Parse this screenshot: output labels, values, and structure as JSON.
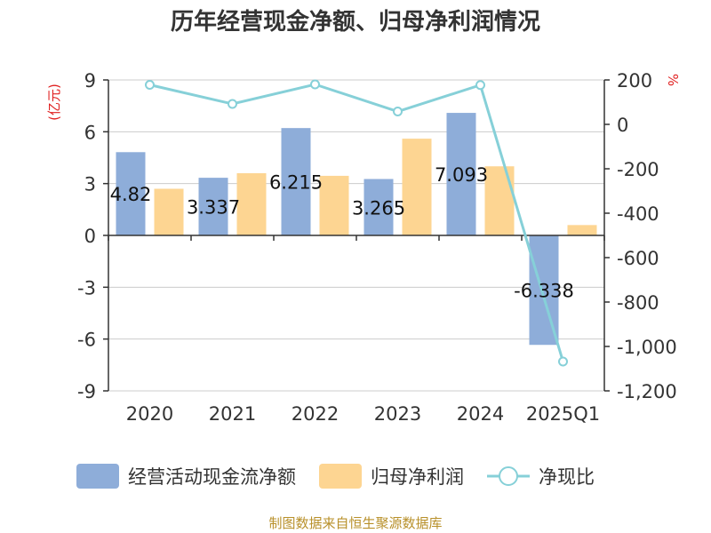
{
  "chart_data": {
    "type": "bar",
    "title": "历年经营现金净额、归母净利润情况",
    "left_unit": "(亿元)",
    "right_unit": "%",
    "categories": [
      "2020",
      "2021",
      "2022",
      "2023",
      "2024",
      "2025Q1"
    ],
    "ylim_left": [
      -9,
      9
    ],
    "left_ticks": [
      "9",
      "6",
      "3",
      "0",
      "-3",
      "-6",
      "-9"
    ],
    "ylim_right": [
      -1200,
      200
    ],
    "right_ticks": [
      "200",
      "0",
      "-200",
      "-400",
      "-600",
      "-800",
      "-1,000",
      "-1,200"
    ],
    "grid": true,
    "legend_position": "bottom",
    "series": [
      {
        "name": "经营活动现金流净额",
        "kind": "bar",
        "axis": "left",
        "color": "#8eadd9",
        "values": [
          4.82,
          3.337,
          6.215,
          3.265,
          7.093,
          -6.338
        ],
        "labels": [
          "4.82",
          "3.337",
          "6.215",
          "3.265",
          "7.093",
          "-6.338"
        ]
      },
      {
        "name": "归母净利润",
        "kind": "bar",
        "axis": "left",
        "color": "#fdd592",
        "values": [
          2.7,
          3.6,
          3.45,
          5.6,
          4.0,
          0.6
        ]
      },
      {
        "name": "净现比",
        "kind": "line",
        "axis": "right",
        "color": "#86d0d8",
        "values": [
          178,
          92,
          180,
          58,
          177,
          -1068
        ]
      }
    ],
    "source": "制图数据来自恒生聚源数据库"
  }
}
